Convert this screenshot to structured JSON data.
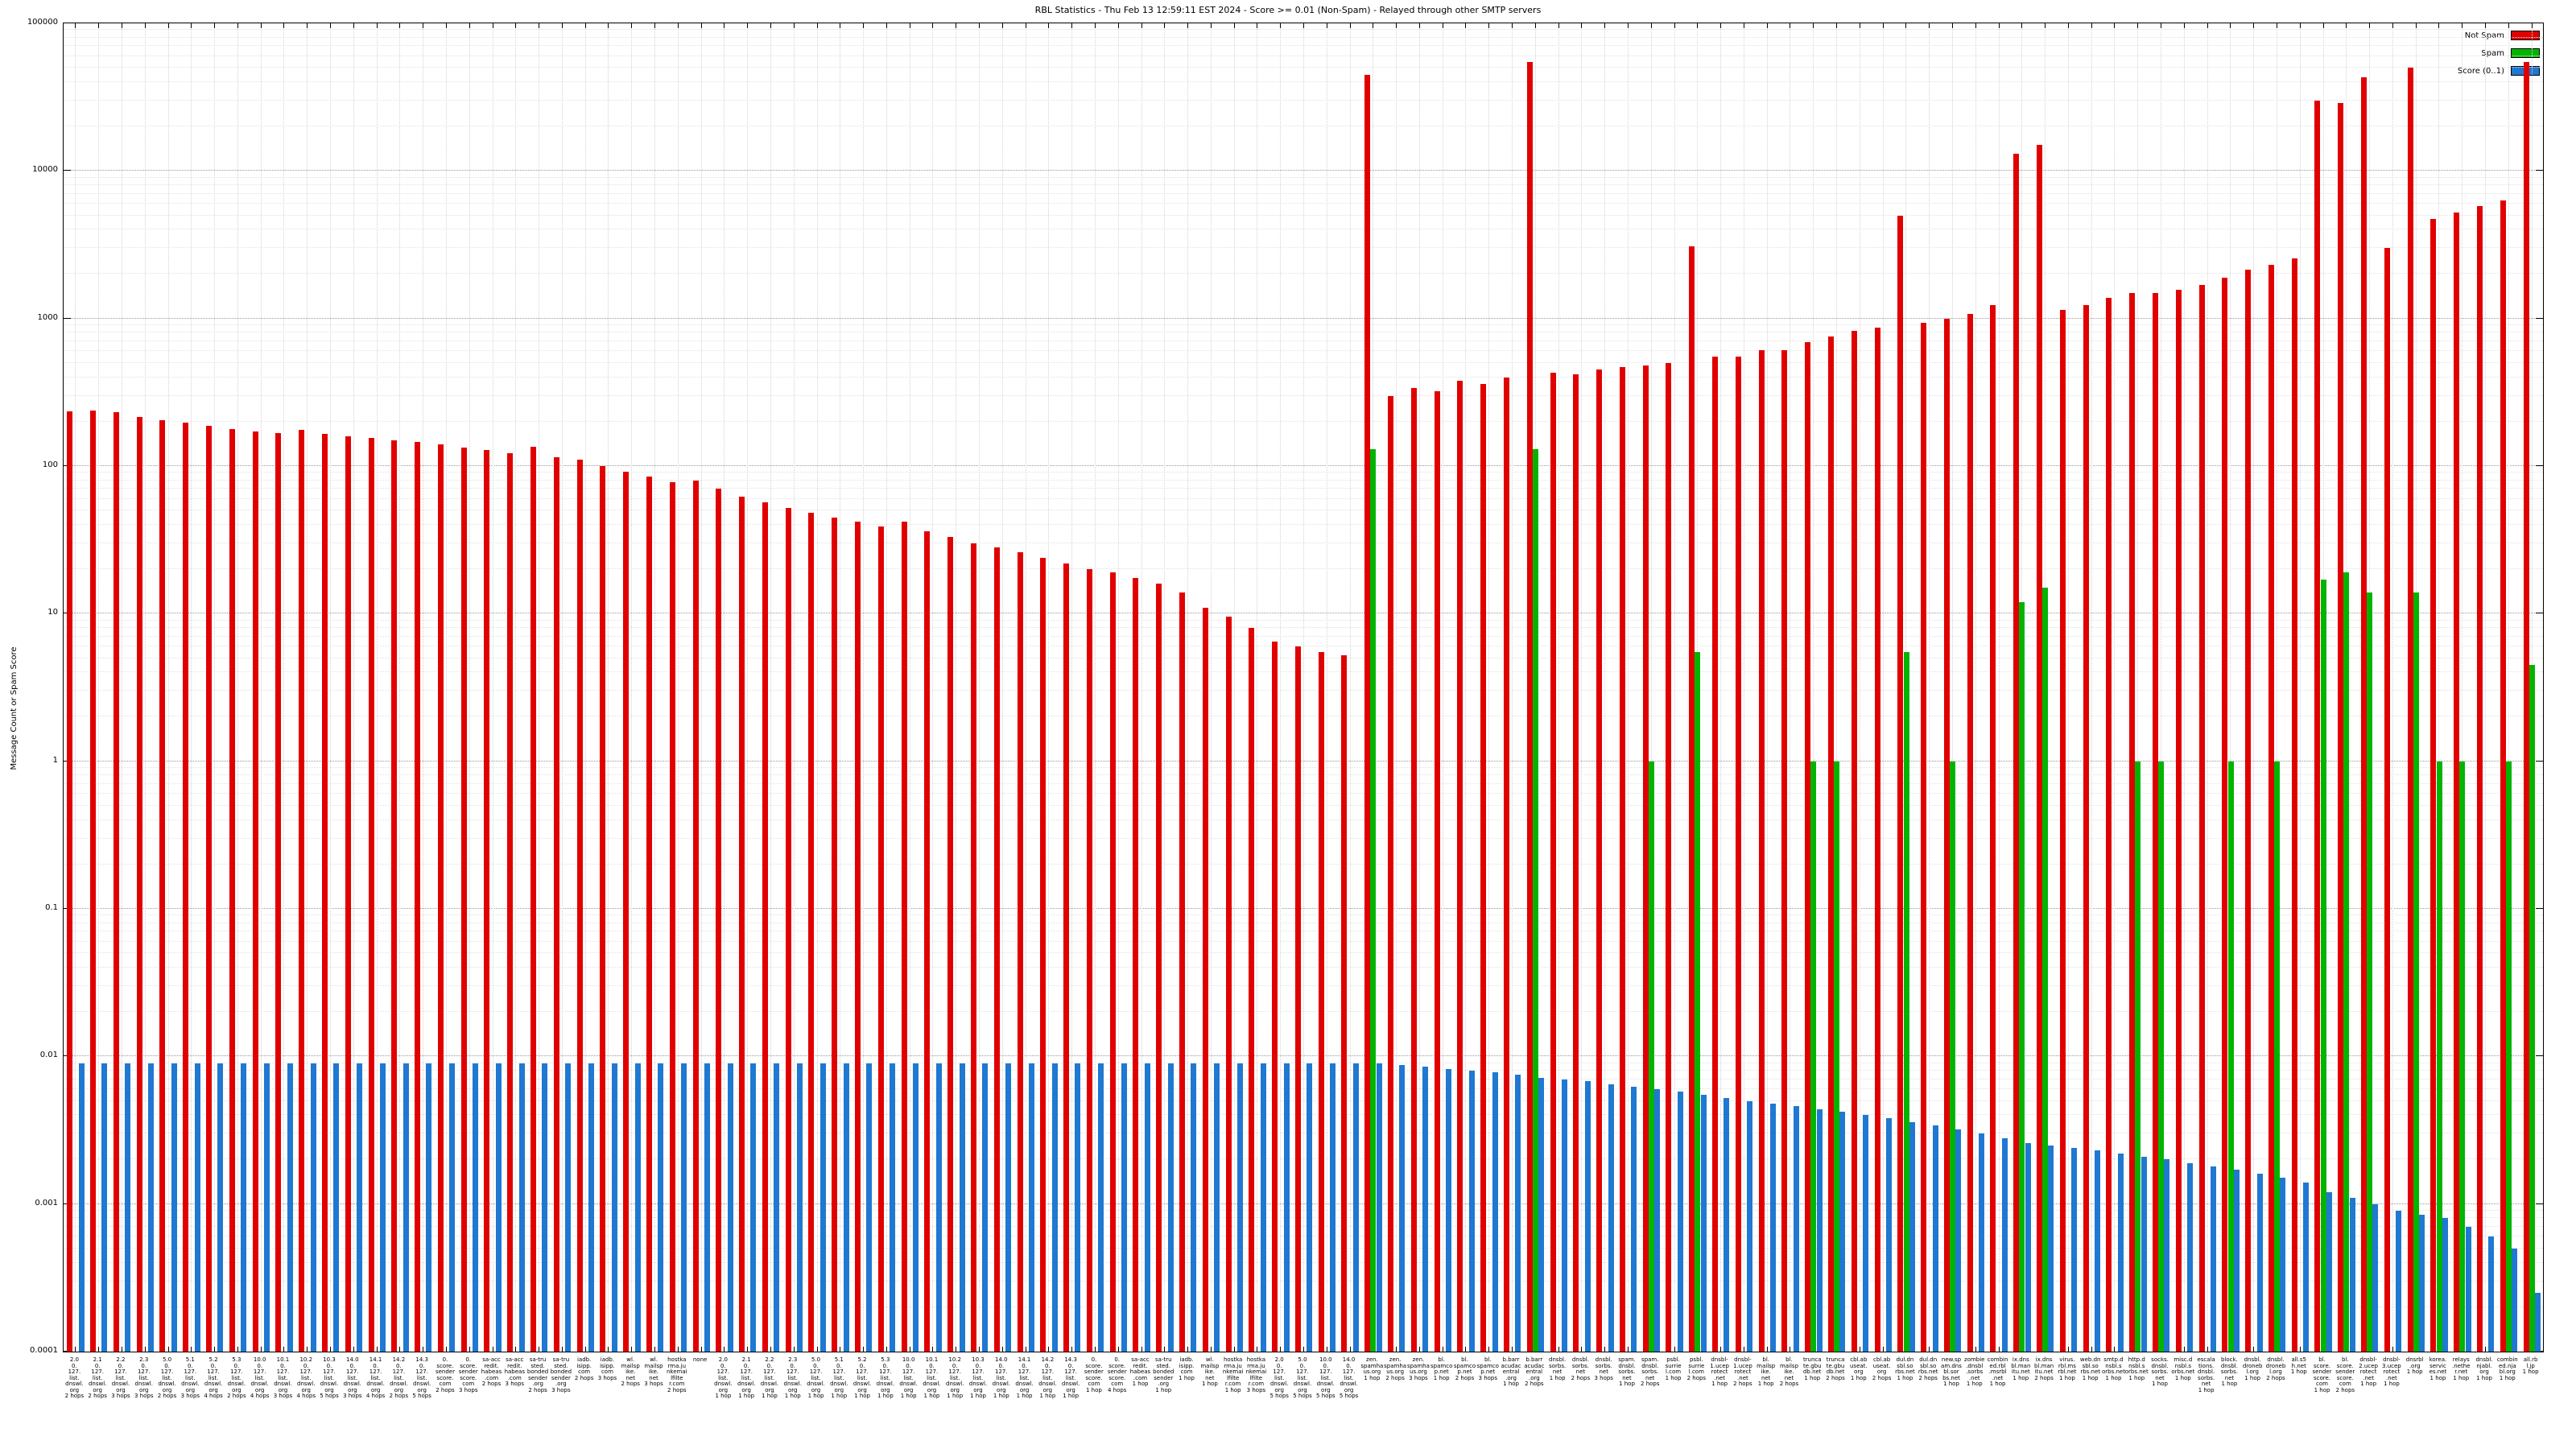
{
  "title": "RBL Statistics - Thu Feb 13 12:59:11 EST 2024 - Score >= 0.01 (Non-Spam) - Relayed through other SMTP servers",
  "y_axis": {
    "label": "Message Count or Spam Score",
    "ticks": [
      "100000",
      "10000",
      "1000",
      "100",
      "10",
      "1",
      "0.1",
      "0.01",
      "0.001",
      "0.0001"
    ]
  },
  "legend": [
    {
      "label": "Not Spam",
      "color": "#e10000"
    },
    {
      "label": "Spam",
      "color": "#00b400"
    },
    {
      "label": "Score (0..1)",
      "color": "#1f78d1"
    }
  ],
  "chart_data": {
    "type": "bar",
    "y_scale": "log",
    "ylim": [
      0.0001,
      100000
    ],
    "grid": true,
    "legend_position": "top-right",
    "series_names": [
      "Not Spam",
      "Spam",
      "Score (0..1)"
    ],
    "colors": {
      "not_spam": "#e10000",
      "spam": "#00b400",
      "score": "#1f78d1"
    },
    "group_format": [
      "label (lines separated by |)",
      "not_spam",
      "spam",
      "score"
    ],
    "groups": [
      [
        "2.0|0.|127.|list.|dnswl.|org|2 hops",
        235,
        null,
        0.009
      ],
      [
        "2.1|0.|127.|list.|dnswl.|org|2 hops",
        238,
        null,
        0.009
      ],
      [
        "2.2|0.|127.|list.|dnswl.|org|3 hops",
        232,
        null,
        0.009
      ],
      [
        "2.3|0.|127.|list.|dnswl.|org|3 hops",
        215,
        null,
        0.009
      ],
      [
        "5.0|0.|127.|list.|dnswl.|org|2 hops",
        205,
        null,
        0.009
      ],
      [
        "5.1|0.|127.|list.|dnswl.|org|3 hops",
        196,
        null,
        0.009
      ],
      [
        "5.2|0.|127.|list.|dnswl.|org|4 hops",
        188,
        null,
        0.009
      ],
      [
        "5.3|0.|127.|list.|dnswl.|org|2 hops",
        178,
        null,
        0.009
      ],
      [
        "10.0|0.|127.|list.|dnswl.|org|4 hops",
        172,
        null,
        0.009
      ],
      [
        "10.1|0.|127.|list.|dnswl.|org|3 hops",
        168,
        null,
        0.009
      ],
      [
        "10.2|0.|127.|list.|dnswl.|org|4 hops",
        175,
        null,
        0.009
      ],
      [
        "10.3|0.|127.|list.|dnswl.|org|5 hops",
        165,
        null,
        0.009
      ],
      [
        "14.0|0.|127.|list.|dnswl.|org|3 hops",
        160,
        null,
        0.009
      ],
      [
        "14.1|0.|127.|list.|dnswl.|org|4 hops",
        155,
        null,
        0.009
      ],
      [
        "14.2|0.|127.|list.|dnswl.|org|2 hops",
        150,
        null,
        0.009
      ],
      [
        "14.3|0.|127.|list.|dnswl.|org|5 hops",
        145,
        null,
        0.009
      ],
      [
        "0.|score.|sender|score.|com|2 hops",
        140,
        null,
        0.009
      ],
      [
        "0.|score.|sender|score.|com|3 hops",
        133,
        null,
        0.009
      ],
      [
        "sa-acc|redit.|habeas|.com|2 hops",
        128,
        null,
        0.009
      ],
      [
        "sa-acc|redit.|habeas|.com|3 hops",
        122,
        null,
        0.009
      ],
      [
        "sa-tru|sted.|bonded|sender|.org|2 hops",
        135,
        null,
        0.009
      ],
      [
        "sa-tru|sted.|bonded|sender|.org|3 hops",
        115,
        null,
        0.009
      ],
      [
        "iadb.|isipp.|com|2 hops",
        110,
        null,
        0.009
      ],
      [
        "iadb.|isipp.|com|3 hops",
        100,
        null,
        0.009
      ],
      [
        "wl.|mailsp|ike.|net|2 hops",
        92,
        null,
        0.009
      ],
      [
        "wl.|mailsp|ike.|net|3 hops",
        85,
        null,
        0.009
      ],
      [
        "hostka|rma.ju|nkemai|lfilte|r.com|2 hops",
        78,
        null,
        0.009
      ],
      [
        "none",
        80,
        null,
        0.009
      ],
      [
        "2.0|0.|127.|list.|dnswl.|org|1 hop",
        70,
        null,
        0.009
      ],
      [
        "2.1|0.|127.|list.|dnswl.|org|1 hop",
        62,
        null,
        0.009
      ],
      [
        "2.2|0.|127.|list.|dnswl.|org|1 hop",
        57,
        null,
        0.009
      ],
      [
        "2.3|0.|127.|list.|dnswl.|org|1 hop",
        52,
        null,
        0.009
      ],
      [
        "5.0|0.|127.|list.|dnswl.|org|1 hop",
        48,
        null,
        0.009
      ],
      [
        "5.1|0.|127.|list.|dnswl.|org|1 hop",
        45,
        null,
        0.009
      ],
      [
        "5.2|0.|127.|list.|dnswl.|org|1 hop",
        42,
        null,
        0.009
      ],
      [
        "5.3|0.|127.|list.|dnswl.|org|1 hop",
        39,
        null,
        0.009
      ],
      [
        "10.0|0.|127.|list.|dnswl.|org|1 hop",
        42,
        null,
        0.009
      ],
      [
        "10.1|0.|127.|list.|dnswl.|org|1 hop",
        36,
        null,
        0.009
      ],
      [
        "10.2|0.|127.|list.|dnswl.|org|1 hop",
        33,
        null,
        0.009
      ],
      [
        "10.3|0.|127.|list.|dnswl.|org|1 hop",
        30,
        null,
        0.009
      ],
      [
        "14.0|0.|127.|list.|dnswl.|org|1 hop",
        28,
        null,
        0.009
      ],
      [
        "14.1|0.|127.|list.|dnswl.|org|1 hop",
        26,
        null,
        0.009
      ],
      [
        "14.2|0.|127.|list.|dnswl.|org|1 hop",
        24,
        null,
        0.009
      ],
      [
        "14.3|0.|127.|list.|dnswl.|org|1 hop",
        22,
        null,
        0.009
      ],
      [
        "0.|score.|sender|score.|com|1 hop",
        20,
        null,
        0.009
      ],
      [
        "0.|score.|sender|score.|com|4 hops",
        19,
        null,
        0.009
      ],
      [
        "sa-acc|redit.|habeas|.com|1 hop",
        17.5,
        null,
        0.009
      ],
      [
        "sa-tru|sted.|bonded|sender|.org|1 hop",
        16,
        null,
        0.009
      ],
      [
        "iadb.|isipp.|com|1 hop",
        14,
        null,
        0.009
      ],
      [
        "wl.|mailsp|ike.|net|1 hop",
        11,
        null,
        0.009
      ],
      [
        "hostka|rma.ju|nkemai|lfilte|r.com|1 hop",
        9.5,
        null,
        0.009
      ],
      [
        "hostka|rma.ju|nkemai|lfilte|r.com|3 hops",
        8,
        null,
        0.009
      ],
      [
        "2.0|0.|127.|list.|dnswl.|org|5 hops",
        6.5,
        null,
        0.009
      ],
      [
        "5.0|0.|127.|list.|dnswl.|org|5 hops",
        6,
        null,
        0.009
      ],
      [
        "10.0|0.|127.|list.|dnswl.|org|5 hops",
        5.5,
        null,
        0.009
      ],
      [
        "14.0|0.|127.|list.|dnswl.|org|5 hops",
        5.2,
        null,
        0.009
      ],
      [
        "zen.|spamha|us.org|1 hop",
        45000,
        130,
        0.009
      ],
      [
        "zen.|spamha|us.org|2 hops",
        300,
        null,
        0.0088
      ],
      [
        "zen.|spamha|us.org|3 hops",
        340,
        null,
        0.0085
      ],
      [
        "bl.|spamco|p.net|1 hop",
        320,
        null,
        0.0082
      ],
      [
        "bl.|spamco|p.net|2 hops",
        380,
        null,
        0.008
      ],
      [
        "bl.|spamco|p.net|3 hops",
        360,
        null,
        0.0078
      ],
      [
        "b.barr|acudac|entral|.org|1 hop",
        400,
        null,
        0.0075
      ],
      [
        "b.barr|acudac|entral|.org|2 hops",
        55000,
        130,
        0.0072
      ],
      [
        "dnsbl.|sorbs.|net|1 hop",
        430,
        null,
        0.007
      ],
      [
        "dnsbl.|sorbs.|net|2 hops",
        420,
        null,
        0.0068
      ],
      [
        "dnsbl.|sorbs.|net|3 hops",
        450,
        null,
        0.0065
      ],
      [
        "spam.|dnsbl.|sorbs.|net|1 hop",
        470,
        null,
        0.0062
      ],
      [
        "spam.|dnsbl.|sorbs.|net|2 hops",
        480,
        1,
        0.006
      ],
      [
        "psbl.|surrie|l.com|1 hop",
        500,
        null,
        0.0058
      ],
      [
        "psbl.|surrie|l.com|2 hops",
        3100,
        5.5,
        0.0055
      ],
      [
        "dnsbl-|1.ucep|rotect|.net|1 hop",
        550,
        null,
        0.0052
      ],
      [
        "dnsbl-|1.ucep|rotect|.net|2 hops",
        550,
        null,
        0.005
      ],
      [
        "bl.|mailsp|ike.|net|1 hop",
        610,
        null,
        0.0048
      ],
      [
        "bl.|mailsp|ike.|net|2 hops",
        610,
        null,
        0.0046
      ],
      [
        "trunca|te.gbu|db.net|1 hop",
        690,
        1,
        0.0044
      ],
      [
        "trunca|te.gbu|db.net|2 hops",
        760,
        1,
        0.0042
      ],
      [
        "cbl.ab|useat.|org|1 hop",
        820,
        null,
        0.004
      ],
      [
        "cbl.ab|useat.|org|2 hops",
        870,
        null,
        0.0038
      ],
      [
        "dul.dn|sbl.so|rbs.net|1 hop",
        5000,
        5.5,
        0.0036
      ],
      [
        "dul.dn|sbl.so|rbs.net|2 hops",
        940,
        null,
        0.0034
      ],
      [
        "new.sp|am.dns|bl.sor|bs.net|1 hop",
        1000,
        1,
        0.0032
      ],
      [
        "zombie|.dnsbl|.sorbs|.net|1 hop",
        1080,
        null,
        0.003
      ],
      [
        "combin|ed.rbl|.msrbl|.net|1 hop",
        1240,
        null,
        0.0028
      ],
      [
        "ix.dns|bl.man|itu.net|1 hop",
        13000,
        12,
        0.0026
      ],
      [
        "ix.dns|bl.man|itu.net|2 hops",
        15000,
        15,
        0.0025
      ],
      [
        "virus.|rbl.ms|rbl.net|1 hop",
        1140,
        null,
        0.0024
      ],
      [
        "web.dn|sbl.so|rbs.net|1 hop",
        1240,
        null,
        0.0023
      ],
      [
        "smtp.d|nsbl.s|orbs.net|1 hop",
        1380,
        null,
        0.0022
      ],
      [
        "http.d|nsbl.s|orbs.net|1 hop",
        1480,
        1,
        0.0021
      ],
      [
        "socks.|dnsbl.|sorbs.|net|1 hop",
        1480,
        1,
        0.002
      ],
      [
        "misc.d|nsbl.s|orbs.net|1 hop",
        1560,
        null,
        0.0019
      ],
      [
        "escala|tions.|dnsbl.|sorbs.|net|1 hop",
        1680,
        null,
        0.0018
      ],
      [
        "block.|dnsbl.|sorbs.|net|1 hop",
        1880,
        1,
        0.0017
      ],
      [
        "dnsbl.|droneb|l.org|1 hop",
        2130,
        null,
        0.0016
      ],
      [
        "dnsbl.|droneb|l.org|2 hops",
        2300,
        1,
        0.0015
      ],
      [
        "all.s5|h.net|1 hop",
        2550,
        null,
        0.0014
      ],
      [
        "bl.|score.|sender|score.|com|1 hop",
        30000,
        17,
        0.0012
      ],
      [
        "bl.|score.|sender|score.|com|2 hops",
        29000,
        19,
        0.0011
      ],
      [
        "dnsbl-|2.ucep|rotect|.net|1 hop",
        43000,
        14,
        0.001
      ],
      [
        "dnsbl-|3.ucep|rotect|.net|1 hop",
        3000,
        null,
        0.0009
      ],
      [
        "dnsrbl|.org|1 hop",
        50000,
        14,
        0.00085
      ],
      [
        "korea.|servic|es.net|1 hop",
        4700,
        1,
        0.0008
      ],
      [
        "relays|.nethe|r.net|1 hop",
        5200,
        1,
        0.0007
      ],
      [
        "dnsbl.|njabl.|org|1 hop",
        5800,
        null,
        0.0006
      ],
      [
        "combin|ed.nja|bl.org|1 hop",
        6300,
        1,
        0.0005
      ],
      [
        "all.rb|l.jp|1 hop",
        55000,
        4.5,
        0.00025
      ]
    ]
  }
}
